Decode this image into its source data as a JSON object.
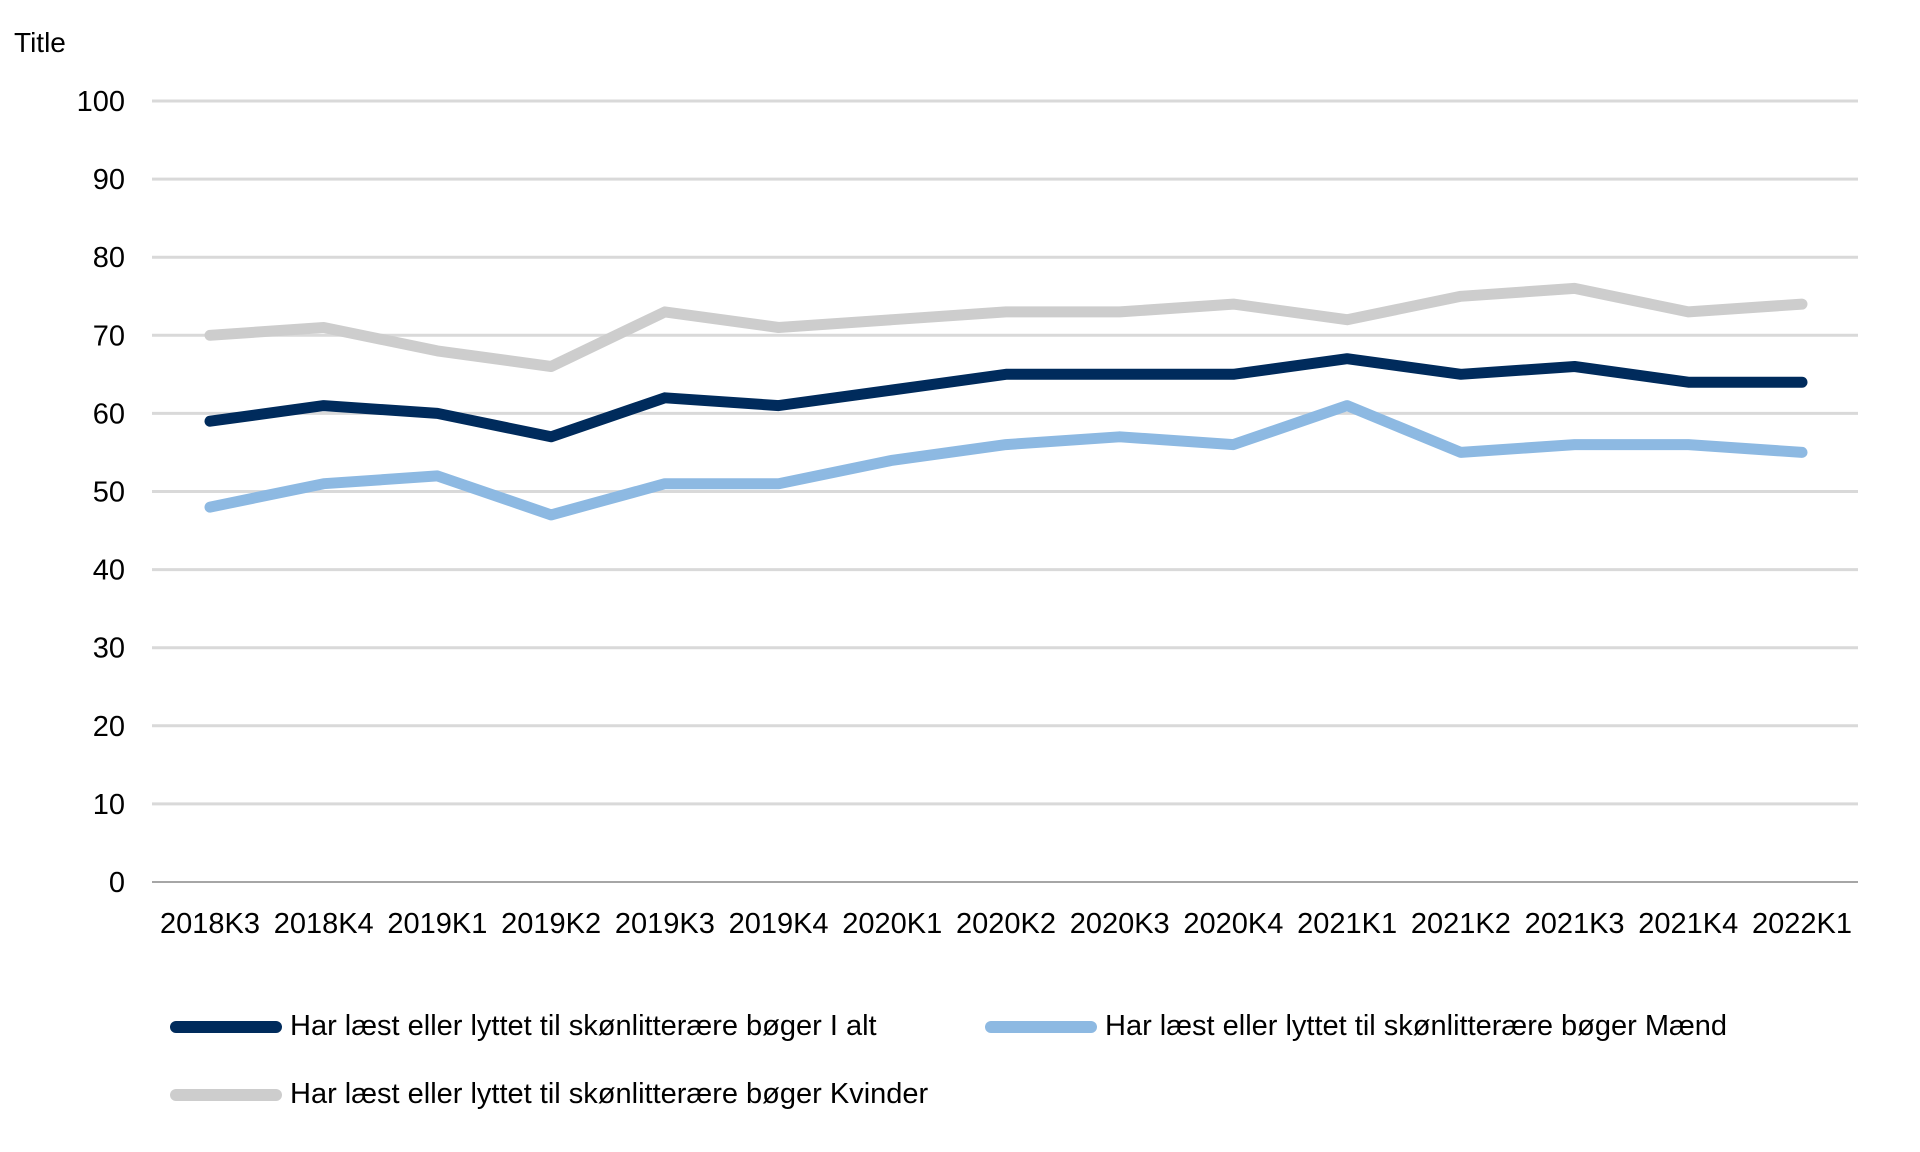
{
  "chart_data": {
    "type": "line",
    "title": "Title",
    "xlabel": "",
    "ylabel": "",
    "ylim": [
      0,
      100
    ],
    "yticks": [
      0,
      10,
      20,
      30,
      40,
      50,
      60,
      70,
      80,
      90,
      100
    ],
    "grid": true,
    "legend_position": "bottom",
    "categories": [
      "2018K3",
      "2018K4",
      "2019K1",
      "2019K2",
      "2019K3",
      "2019K4",
      "2020K1",
      "2020K2",
      "2020K3",
      "2020K4",
      "2021K1",
      "2021K2",
      "2021K3",
      "2021K4",
      "2022K1"
    ],
    "series": [
      {
        "name": "Har læst eller lyttet til skønlitterære bøger I alt",
        "color": "#002b5c",
        "values": [
          59,
          61,
          60,
          57,
          62,
          61,
          63,
          65,
          65,
          65,
          67,
          65,
          66,
          64,
          64
        ]
      },
      {
        "name": "Har læst eller lyttet til skønlitterære bøger Mænd",
        "color": "#8db9e2",
        "values": [
          48,
          51,
          52,
          47,
          51,
          51,
          54,
          56,
          57,
          56,
          61,
          55,
          56,
          56,
          55
        ]
      },
      {
        "name": "Har læst eller lyttet til skønlitterære bøger Kvinder",
        "color": "#cdcdcd",
        "values": [
          70,
          71,
          68,
          66,
          73,
          71,
          72,
          73,
          73,
          74,
          72,
          75,
          76,
          73,
          74
        ]
      }
    ]
  }
}
